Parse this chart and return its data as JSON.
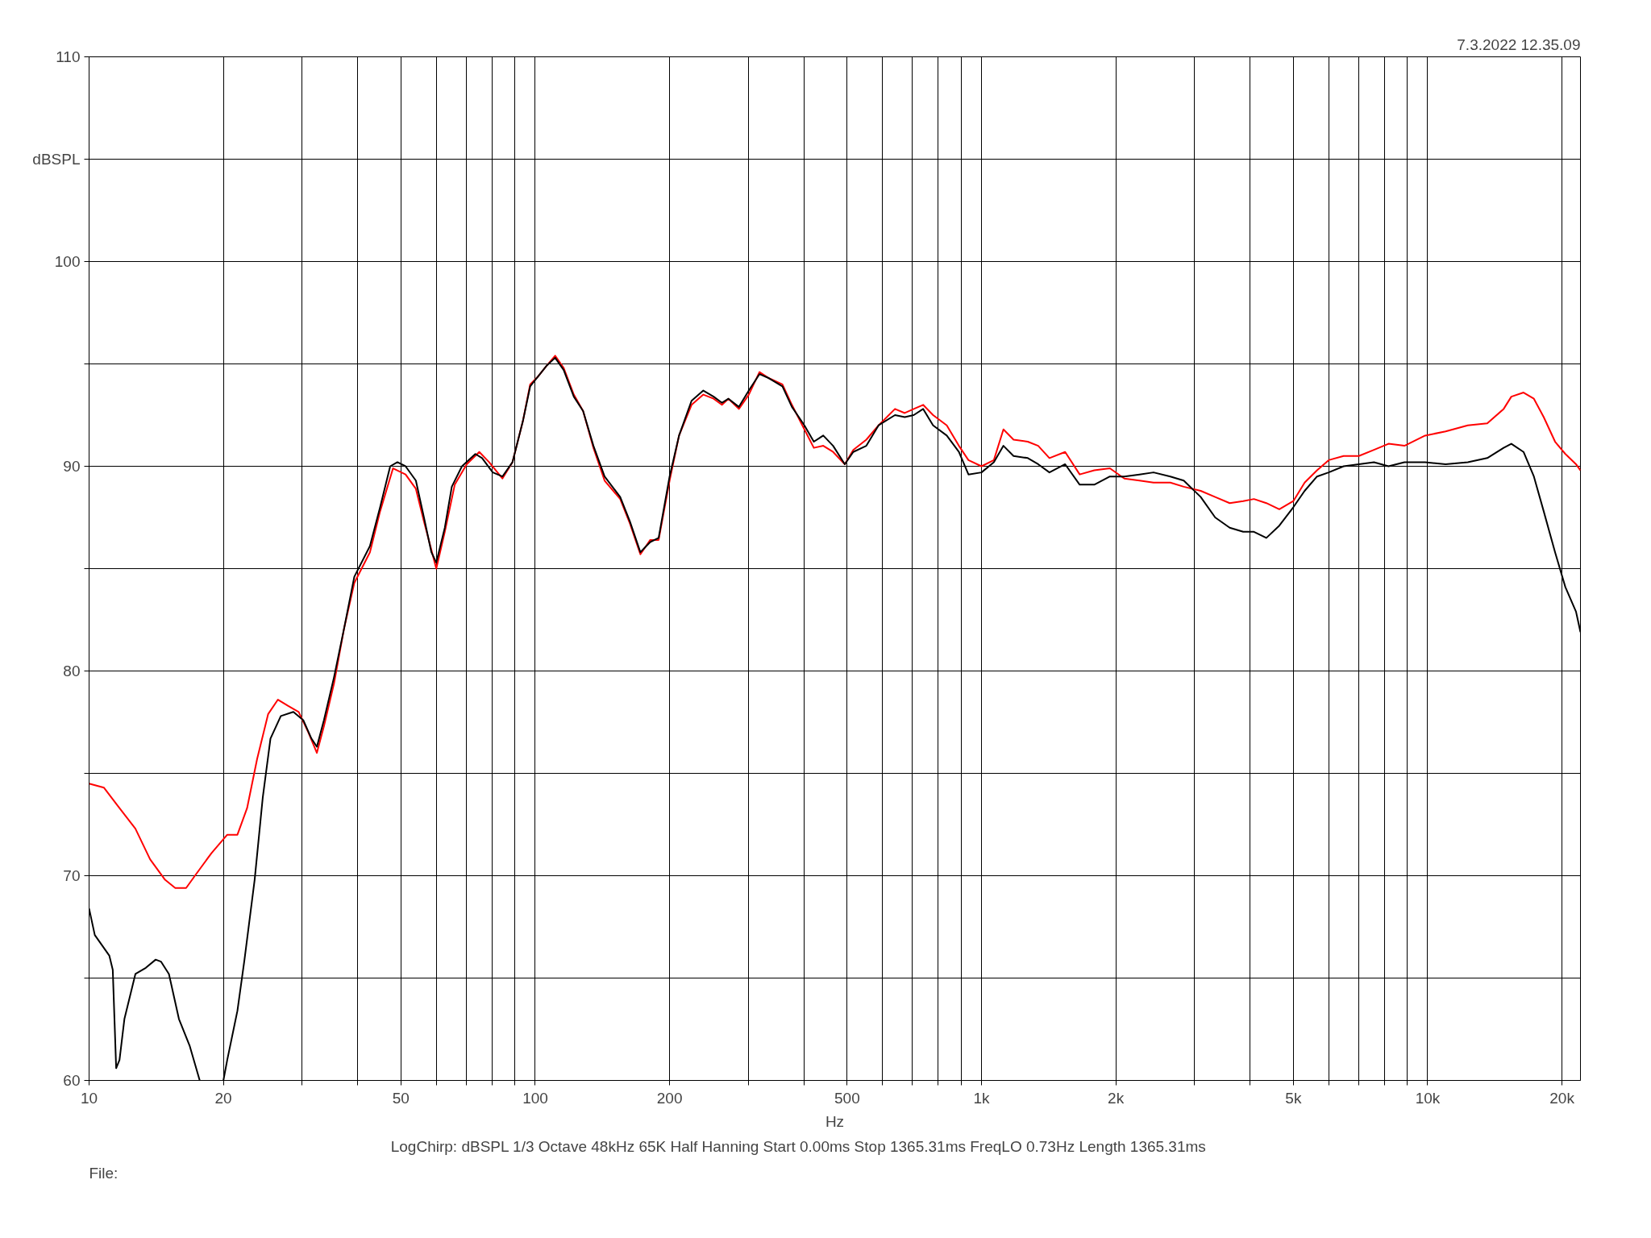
{
  "chart_data": {
    "type": "line",
    "log": "x",
    "grid": true,
    "marker": "none",
    "line_style": "solid",
    "xlabel": "Hz",
    "xlim": [
      10,
      22000
    ],
    "ylim": [
      60,
      110
    ],
    "xticks": [
      10,
      20,
      {
        "value": 30,
        "label": null
      },
      {
        "value": 40,
        "label": null
      },
      50,
      {
        "value": 60,
        "label": null
      },
      {
        "value": 70,
        "label": null
      },
      {
        "value": 80,
        "label": null
      },
      {
        "value": 90,
        "label": null
      },
      100,
      200,
      {
        "value": 300,
        "label": null
      },
      {
        "value": 400,
        "label": null
      },
      500,
      {
        "value": 600,
        "label": null
      },
      {
        "value": 700,
        "label": null
      },
      {
        "value": 800,
        "label": null
      },
      {
        "value": 900,
        "label": null
      },
      {
        "value": 1000,
        "label": "1k"
      },
      {
        "value": 2000,
        "label": "2k"
      },
      {
        "value": 3000,
        "label": null
      },
      {
        "value": 4000,
        "label": null
      },
      {
        "value": 5000,
        "label": "5k"
      },
      {
        "value": 6000,
        "label": null
      },
      {
        "value": 7000,
        "label": null
      },
      {
        "value": 8000,
        "label": null
      },
      {
        "value": 9000,
        "label": null
      },
      {
        "value": 10000,
        "label": "10k"
      },
      {
        "value": 20000,
        "label": "20k"
      }
    ],
    "yticks": [
      60,
      {
        "value": 65,
        "label": null
      },
      70,
      {
        "value": 75,
        "label": null
      },
      80,
      {
        "value": 85,
        "label": null
      },
      90,
      {
        "value": 95,
        "label": null
      },
      100,
      {
        "value": 105,
        "label": "dBSPL"
      },
      110
    ],
    "annotations": [
      "7.3.2022 12.35.09",
      "LogChirp:  dBSPL   1/3 Octave   48kHz   65K   Half Hanning   Start 0.00ms   Stop 1365.31ms   FreqLO 0.73Hz   Length 1365.31ms",
      "File:"
    ],
    "series": [
      {
        "color": "#ff0000",
        "x": [
          10,
          10.8,
          11.7,
          12.7,
          13.7,
          14.8,
          15.6,
          16.5,
          17.4,
          18.8,
          20.4,
          21.5,
          22.6,
          23.8,
          25.2,
          26.5,
          27.9,
          29.5,
          31,
          32.4,
          33.6,
          35.4,
          37.3,
          39.3,
          42.6,
          44.9,
          48,
          51.2,
          54,
          56.3,
          60,
          62.7,
          66,
          70.2,
          74.9,
          78.8,
          84.4,
          88.9,
          93.8,
          97.4,
          101.6,
          105.9,
          110.8,
          115.8,
          122,
          128,
          135,
          143,
          155,
          163,
          172,
          181,
          189,
          200,
          210,
          224,
          238,
          251,
          262,
          271,
          286,
          301,
          318,
          334,
          358,
          376,
          401,
          421,
          442,
          465,
          494,
          516,
          552,
          588,
          640,
          673,
          705,
          740,
          779,
          836,
          890,
          935,
          1000,
          1066,
          1120,
          1180,
          1270,
          1340,
          1420,
          1540,
          1660,
          1790,
          1940,
          2090,
          2260,
          2430,
          2650,
          2840,
          3100,
          3340,
          3600,
          3860,
          4080,
          4350,
          4650,
          5000,
          5300,
          5650,
          6000,
          6480,
          7010,
          7580,
          8170,
          8870,
          9870,
          10970,
          12300,
          13600,
          14800,
          15400,
          16400,
          17300,
          18200,
          19300,
          20350,
          21500,
          22000
        ],
        "values": [
          74.5,
          74.3,
          73.3,
          72.3,
          70.8,
          69.8,
          69.4,
          69.4,
          70.1,
          71.1,
          72.0,
          72.0,
          73.3,
          75.7,
          77.9,
          78.6,
          78.3,
          78.0,
          77.0,
          76.0,
          77.3,
          79.4,
          82.1,
          84.3,
          85.8,
          87.8,
          89.9,
          89.6,
          88.9,
          87.3,
          85.0,
          86.8,
          89.1,
          90.1,
          90.7,
          90.2,
          89.4,
          90.2,
          92.2,
          94.0,
          94.4,
          94.9,
          95.4,
          94.8,
          93.5,
          92.7,
          90.9,
          89.3,
          88.4,
          87.2,
          85.7,
          86.4,
          86.4,
          89.3,
          91.5,
          93.0,
          93.5,
          93.3,
          93.0,
          93.3,
          92.8,
          93.5,
          94.6,
          94.3,
          94.0,
          93.0,
          91.8,
          90.9,
          91.0,
          90.7,
          90.1,
          90.8,
          91.3,
          92.0,
          92.8,
          92.6,
          92.8,
          93.0,
          92.5,
          92.0,
          91.0,
          90.3,
          90.0,
          90.3,
          91.8,
          91.3,
          91.2,
          91.0,
          90.4,
          90.7,
          89.6,
          89.8,
          89.9,
          89.4,
          89.3,
          89.2,
          89.2,
          89.0,
          88.8,
          88.5,
          88.2,
          88.3,
          88.4,
          88.2,
          87.9,
          88.3,
          89.2,
          89.8,
          90.3,
          90.5,
          90.5,
          90.8,
          91.1,
          91.0,
          91.5,
          91.7,
          92.0,
          92.1,
          92.8,
          93.4,
          93.6,
          93.3,
          92.4,
          91.2,
          90.6,
          90.1,
          89.8
        ]
      },
      {
        "color": "#000000",
        "x": [
          10,
          10.3,
          11.1,
          11.3,
          11.5,
          11.7,
          12,
          12.7,
          13.4,
          14.1,
          14.5,
          15.1,
          15.9,
          16.8,
          17.7,
          18.8,
          20,
          20.4,
          21.5,
          22.3,
          23.5,
          24.5,
          25.5,
          26.9,
          28.7,
          30.2,
          31.5,
          32.4,
          33.6,
          35.4,
          37.3,
          39.3,
          42.6,
          44.9,
          47.3,
          49.1,
          51.2,
          54,
          56.3,
          58.5,
          60,
          62.7,
          65,
          68.5,
          73.4,
          76,
          80.3,
          84.4,
          88.9,
          93.8,
          97.4,
          101.6,
          105.9,
          110.8,
          115.8,
          122,
          128,
          135,
          143,
          155,
          163,
          172,
          181,
          189,
          200,
          210,
          224,
          238,
          251,
          262,
          271,
          286,
          301,
          318,
          334,
          358,
          376,
          401,
          421,
          442,
          465,
          494,
          516,
          552,
          588,
          640,
          673,
          705,
          740,
          779,
          836,
          890,
          935,
          1000,
          1066,
          1120,
          1180,
          1270,
          1340,
          1420,
          1540,
          1660,
          1790,
          1940,
          2090,
          2260,
          2430,
          2650,
          2840,
          3100,
          3340,
          3600,
          3860,
          4080,
          4350,
          4650,
          5000,
          5300,
          5650,
          6000,
          6480,
          7010,
          7580,
          8170,
          8870,
          9870,
          10970,
          12300,
          13600,
          14800,
          15400,
          16400,
          17300,
          18200,
          19300,
          20350,
          21500,
          22000
        ],
        "values": [
          68.4,
          67.1,
          66.1,
          65.4,
          60.6,
          61.0,
          63.0,
          65.2,
          65.5,
          65.9,
          65.8,
          65.2,
          63.0,
          61.7,
          60.0,
          null,
          60.0,
          61.0,
          63.4,
          65.9,
          69.8,
          73.8,
          76.7,
          77.8,
          78.0,
          77.6,
          76.7,
          76.3,
          77.6,
          79.7,
          82.1,
          84.6,
          86.1,
          88.0,
          90.0,
          90.2,
          90.0,
          89.3,
          87.5,
          85.8,
          85.3,
          87.0,
          89.0,
          90.0,
          90.6,
          90.4,
          89.7,
          89.5,
          90.2,
          92.2,
          93.9,
          94.4,
          94.9,
          95.3,
          94.7,
          93.4,
          92.7,
          91.0,
          89.5,
          88.5,
          87.3,
          85.8,
          86.3,
          86.5,
          89.5,
          91.5,
          93.2,
          93.7,
          93.4,
          93.1,
          93.3,
          92.9,
          93.7,
          94.5,
          94.3,
          93.9,
          92.9,
          92.0,
          91.2,
          91.5,
          91.0,
          90.1,
          90.7,
          91.0,
          92.0,
          92.5,
          92.4,
          92.5,
          92.8,
          92.0,
          91.5,
          90.7,
          89.6,
          89.7,
          90.2,
          91.0,
          90.5,
          90.4,
          90.1,
          89.7,
          90.1,
          89.1,
          89.1,
          89.5,
          89.5,
          89.6,
          89.7,
          89.5,
          89.3,
          88.5,
          87.5,
          87.0,
          86.8,
          86.8,
          86.5,
          87.1,
          88.0,
          88.8,
          89.5,
          89.7,
          90.0,
          90.1,
          90.2,
          90.0,
          90.2,
          90.2,
          90.1,
          90.2,
          90.4,
          90.9,
          91.1,
          90.7,
          89.5,
          87.8,
          85.8,
          84.1,
          82.9,
          81.9
        ]
      }
    ]
  }
}
